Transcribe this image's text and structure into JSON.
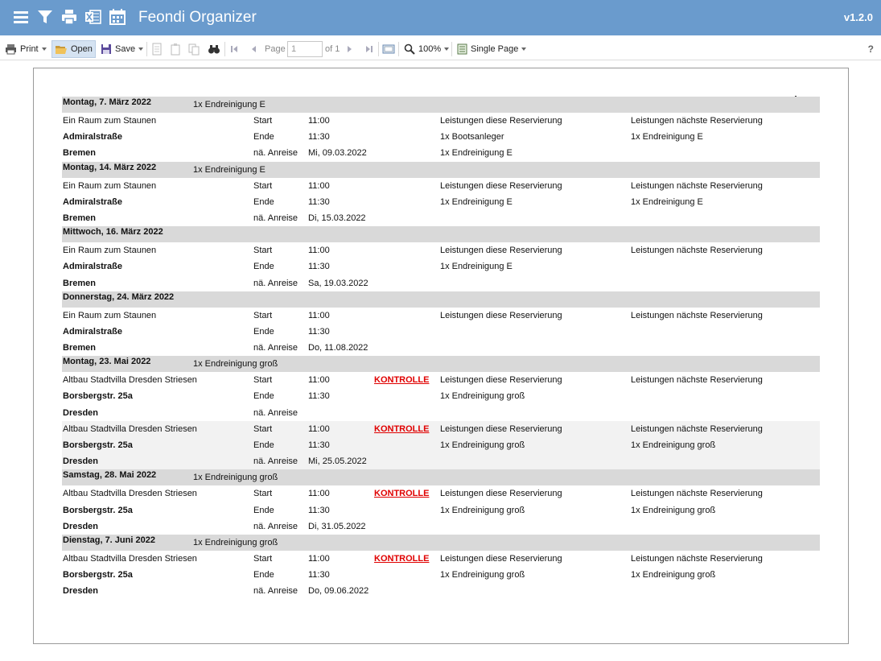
{
  "app": {
    "title": "Feondi Organizer",
    "version": "v1.2.0",
    "header_icons": [
      "menu-icon",
      "filter-icon",
      "printer-icon",
      "excel-icon",
      "calendar-icon"
    ]
  },
  "toolbar": {
    "print_label": "Print",
    "open_label": "Open",
    "save_label": "Save",
    "page_label": "Page",
    "page_value": "1",
    "page_of": "of 1",
    "zoom_label": "100%",
    "view_mode_label": "Single Page",
    "help_label": "?"
  },
  "colors": {
    "header_bg": "#6a9bcd",
    "group_header_bg": "#d9d9d9",
    "kontrolle": "#e00000"
  },
  "report": {
    "groups": [
      {
        "date": "Montag, 7. März 2022",
        "service": "1x Endreinigung E",
        "entries": [
          {
            "alt": false,
            "property": "Ein Raum zum Staunen",
            "street": "Admiralstraße",
            "city": "Bremen",
            "start_label": "Start",
            "start": "11:00",
            "end_label": "Ende",
            "end": "11:30",
            "next_label": "nä. Anreise",
            "next_arrival": "Mi, 09.03.2022",
            "kontrolle": "",
            "this_res_label": "Leistungen diese Reservierung",
            "this_res": [
              "1x Bootsanleger",
              "1x Endreinigung E"
            ],
            "next_res_label": "Leistungen nächste Reservierung",
            "next_res": [
              "1x Endreinigung E"
            ]
          }
        ]
      },
      {
        "date": "Montag, 14. März 2022",
        "service": "1x Endreinigung E",
        "entries": [
          {
            "alt": false,
            "property": "Ein Raum zum Staunen",
            "street": "Admiralstraße",
            "city": "Bremen",
            "start_label": "Start",
            "start": "11:00",
            "end_label": "Ende",
            "end": "11:30",
            "next_label": "nä. Anreise",
            "next_arrival": "Di, 15.03.2022",
            "kontrolle": "",
            "this_res_label": "Leistungen diese Reservierung",
            "this_res": [
              "1x Endreinigung E"
            ],
            "next_res_label": "Leistungen nächste Reservierung",
            "next_res": [
              "1x Endreinigung E"
            ]
          }
        ]
      },
      {
        "date": "Mittwoch, 16. März 2022",
        "service": "",
        "entries": [
          {
            "alt": false,
            "property": "Ein Raum zum Staunen",
            "street": "Admiralstraße",
            "city": "Bremen",
            "start_label": "Start",
            "start": "11:00",
            "end_label": "Ende",
            "end": "11:30",
            "next_label": "nä. Anreise",
            "next_arrival": "Sa, 19.03.2022",
            "kontrolle": "",
            "this_res_label": "Leistungen diese Reservierung",
            "this_res": [
              "1x Endreinigung E"
            ],
            "next_res_label": "Leistungen nächste Reservierung",
            "next_res": []
          }
        ]
      },
      {
        "date": "Donnerstag, 24. März 2022",
        "service": "",
        "entries": [
          {
            "alt": false,
            "property": "Ein Raum zum Staunen",
            "street": "Admiralstraße",
            "city": "Bremen",
            "start_label": "Start",
            "start": "11:00",
            "end_label": "Ende",
            "end": "11:30",
            "next_label": "nä. Anreise",
            "next_arrival": "Do, 11.08.2022",
            "kontrolle": "",
            "this_res_label": "Leistungen diese Reservierung",
            "this_res": [],
            "next_res_label": "Leistungen nächste Reservierung",
            "next_res": []
          }
        ]
      },
      {
        "date": "Montag, 23. Mai 2022",
        "service": "1x Endreinigung groß",
        "entries": [
          {
            "alt": false,
            "property": "Altbau Stadtvilla Dresden Striesen",
            "street": "Borsbergstr. 25a",
            "city": "Dresden",
            "start_label": "Start",
            "start": "11:00",
            "end_label": "Ende",
            "end": "11:30",
            "next_label": "nä. Anreise",
            "next_arrival": "",
            "kontrolle": "KONTROLLE",
            "this_res_label": "Leistungen diese Reservierung",
            "this_res": [
              "1x Endreinigung groß"
            ],
            "next_res_label": "Leistungen nächste Reservierung",
            "next_res": []
          },
          {
            "alt": true,
            "property": "Altbau Stadtvilla Dresden Striesen",
            "street": "Borsbergstr. 25a",
            "city": "Dresden",
            "start_label": "Start",
            "start": "11:00",
            "end_label": "Ende",
            "end": "11:30",
            "next_label": "nä. Anreise",
            "next_arrival": "Mi, 25.05.2022",
            "kontrolle": "KONTROLLE",
            "this_res_label": "Leistungen diese Reservierung",
            "this_res": [
              "1x Endreinigung groß"
            ],
            "next_res_label": "Leistungen nächste Reservierung",
            "next_res": [
              "1x Endreinigung groß"
            ]
          }
        ]
      },
      {
        "date": "Samstag, 28. Mai 2022",
        "service": "1x Endreinigung groß",
        "entries": [
          {
            "alt": false,
            "property": "Altbau Stadtvilla Dresden Striesen",
            "street": "Borsbergstr. 25a",
            "city": "Dresden",
            "start_label": "Start",
            "start": "11:00",
            "end_label": "Ende",
            "end": "11:30",
            "next_label": "nä. Anreise",
            "next_arrival": "Di, 31.05.2022",
            "kontrolle": "KONTROLLE",
            "this_res_label": "Leistungen diese Reservierung",
            "this_res": [
              "1x Endreinigung groß"
            ],
            "next_res_label": "Leistungen nächste Reservierung",
            "next_res": [
              "1x Endreinigung groß"
            ]
          }
        ]
      },
      {
        "date": "Dienstag, 7. Juni 2022",
        "service": "1x Endreinigung groß",
        "entries": [
          {
            "alt": false,
            "property": "Altbau Stadtvilla Dresden Striesen",
            "street": "Borsbergstr. 25a",
            "city": "Dresden",
            "start_label": "Start",
            "start": "11:00",
            "end_label": "Ende",
            "end": "11:30",
            "next_label": "nä. Anreise",
            "next_arrival": "Do, 09.06.2022",
            "kontrolle": "KONTROLLE",
            "this_res_label": "Leistungen diese Reservierung",
            "this_res": [
              "1x Endreinigung groß"
            ],
            "next_res_label": "Leistungen nächste Reservierung",
            "next_res": [
              "1x Endreinigung groß"
            ]
          }
        ]
      }
    ]
  }
}
